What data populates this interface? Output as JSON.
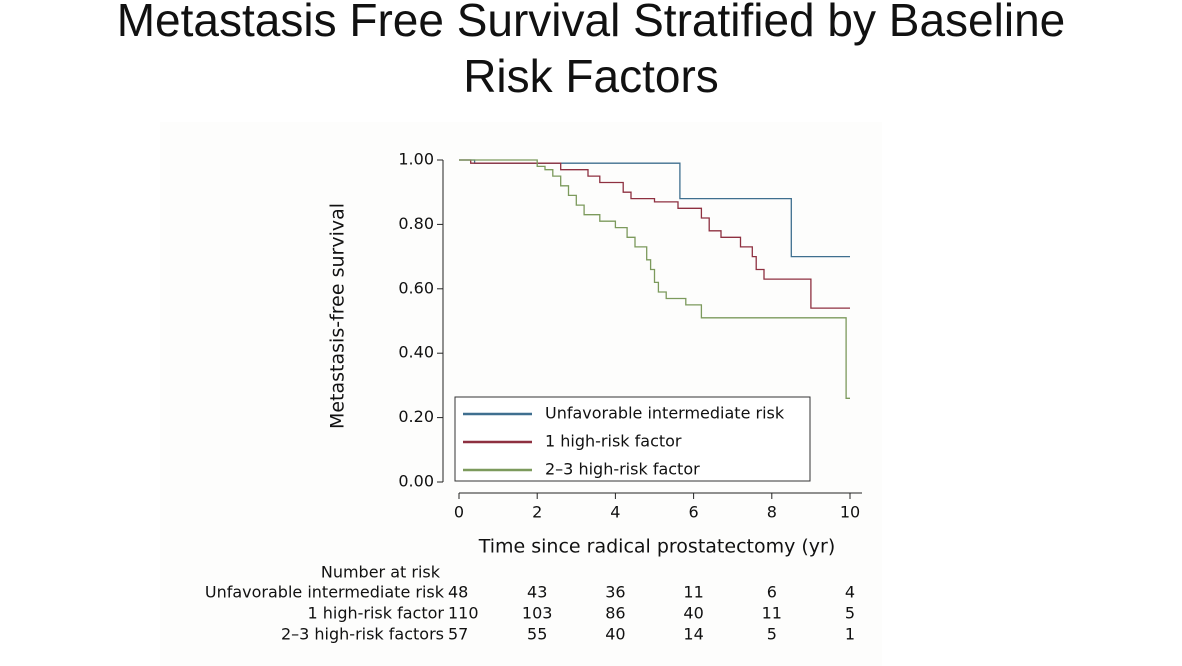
{
  "chart_data": {
    "type": "line",
    "title": [
      "Metastasis Free Survival Stratified by Baseline",
      "Risk Factors"
    ],
    "x_label": "Time since radical prostatectomy (yr)",
    "y_label": "Metastasis-free survival",
    "xlim": [
      0,
      10
    ],
    "ylim": [
      0,
      1
    ],
    "xticks": [
      0,
      2,
      4,
      6,
      8,
      10
    ],
    "yticks": [
      {
        "value": 0,
        "label": "0.00"
      },
      {
        "value": 0.2,
        "label": "0.20"
      },
      {
        "value": 0.4,
        "label": "0.40"
      },
      {
        "value": 0.6,
        "label": "0.60"
      },
      {
        "value": 0.8,
        "label": "0.80"
      },
      {
        "value": 1,
        "label": "1.00"
      }
    ],
    "legend": "bottom-left",
    "series": [
      {
        "name": "Unfavorable intermediate risk",
        "color": "#3f6f8f",
        "x": [
          0,
          0.4,
          0.4,
          5.65,
          5.65,
          8.5,
          8.5,
          10
        ],
        "values": [
          1,
          1,
          0.99,
          0.99,
          0.88,
          0.88,
          0.7,
          0.7
        ]
      },
      {
        "name": "1 high-risk factor",
        "color": "#8e3040",
        "x": [
          0,
          0.3,
          0.3,
          2.6,
          2.6,
          3.3,
          3.3,
          3.6,
          3.6,
          4.2,
          4.2,
          4.4,
          4.4,
          5.0,
          5.0,
          5.6,
          5.6,
          6.2,
          6.2,
          6.4,
          6.4,
          6.7,
          6.7,
          7.2,
          7.2,
          7.5,
          7.5,
          7.6,
          7.6,
          7.8,
          7.8,
          9.0,
          9.0,
          10
        ],
        "values": [
          1,
          1,
          0.99,
          0.99,
          0.97,
          0.97,
          0.95,
          0.95,
          0.93,
          0.93,
          0.9,
          0.9,
          0.88,
          0.88,
          0.87,
          0.87,
          0.85,
          0.85,
          0.82,
          0.82,
          0.78,
          0.78,
          0.76,
          0.76,
          0.73,
          0.73,
          0.7,
          0.7,
          0.66,
          0.66,
          0.63,
          0.63,
          0.54,
          0.54
        ]
      },
      {
        "name": "2–3 high-risk factor",
        "color": "#7c9a5c",
        "x": [
          0,
          2.0,
          2.0,
          2.2,
          2.2,
          2.4,
          2.4,
          2.6,
          2.6,
          2.8,
          2.8,
          3.0,
          3.0,
          3.2,
          3.2,
          3.6,
          3.6,
          4.0,
          4.0,
          4.3,
          4.3,
          4.5,
          4.5,
          4.8,
          4.8,
          4.9,
          4.9,
          5.0,
          5.0,
          5.1,
          5.1,
          5.3,
          5.3,
          5.8,
          5.8,
          6.2,
          6.2,
          9.9,
          9.9,
          10
        ],
        "values": [
          1,
          1,
          0.98,
          0.98,
          0.97,
          0.97,
          0.95,
          0.95,
          0.92,
          0.92,
          0.89,
          0.89,
          0.86,
          0.86,
          0.83,
          0.83,
          0.81,
          0.81,
          0.79,
          0.79,
          0.76,
          0.76,
          0.73,
          0.73,
          0.69,
          0.69,
          0.66,
          0.66,
          0.62,
          0.62,
          0.59,
          0.59,
          0.57,
          0.57,
          0.55,
          0.55,
          0.51,
          0.51,
          0.26,
          0.26
        ]
      }
    ],
    "risk_table": {
      "title": "Number at risk",
      "rows": [
        {
          "name": "Unfavorable intermediate risk",
          "values": [
            48,
            43,
            36,
            11,
            6,
            4
          ]
        },
        {
          "name": "1 high-risk factor",
          "values": [
            110,
            103,
            86,
            40,
            11,
            5
          ]
        },
        {
          "name": "2–3 high-risk factors",
          "values": [
            57,
            55,
            40,
            14,
            5,
            1
          ]
        }
      ]
    }
  }
}
